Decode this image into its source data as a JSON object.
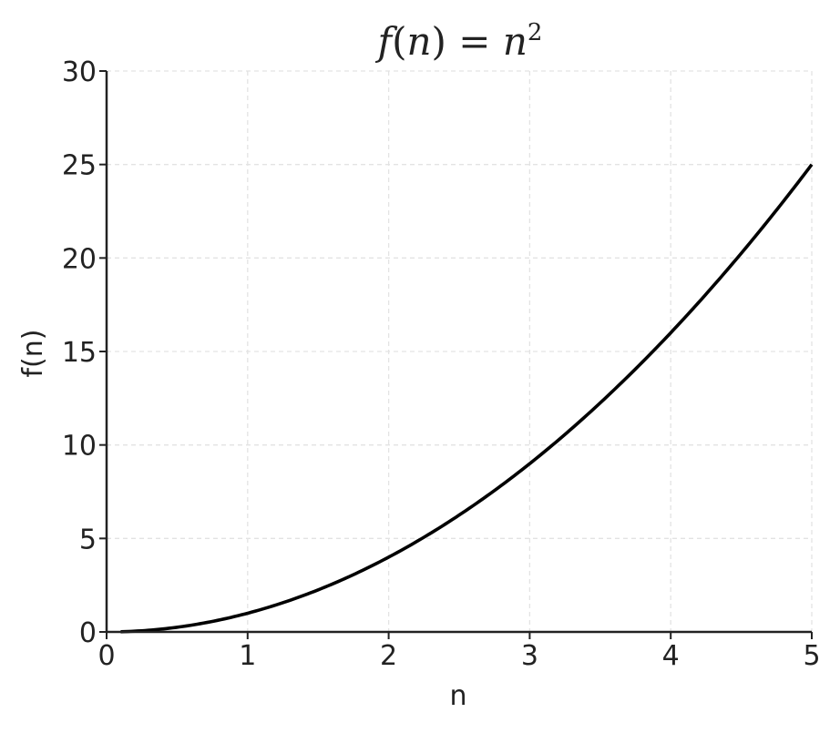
{
  "chart_data": {
    "type": "line",
    "title": {
      "func": "f",
      "open": "(",
      "var": "n",
      "close": ")",
      "eq": " = ",
      "rhs_var": "n",
      "exp": "2"
    },
    "xlabel": "n",
    "ylabel": "f(n)",
    "xlim": [
      0,
      5
    ],
    "ylim": [
      0,
      30
    ],
    "xticks": [
      0,
      1,
      2,
      3,
      4,
      5
    ],
    "yticks": [
      0,
      5,
      10,
      15,
      20,
      25,
      30
    ],
    "grid": true,
    "series": [
      {
        "function": "n^2",
        "x": [
          0.1,
          0.5,
          1,
          1.5,
          2,
          2.5,
          3,
          3.5,
          4,
          4.5,
          5
        ],
        "y": [
          0.01,
          0.25,
          1,
          2.25,
          4,
          6.25,
          9,
          12.25,
          16,
          20.25,
          25
        ],
        "color": "#000000"
      }
    ]
  },
  "colors": {
    "grid": "#e3e3e3",
    "axis": "#222222",
    "text": "#222222"
  }
}
